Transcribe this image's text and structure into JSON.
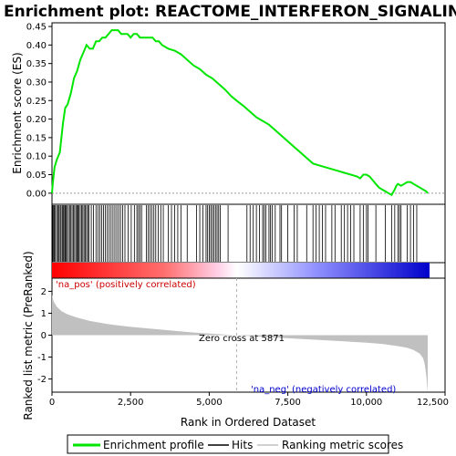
{
  "chart_data": {
    "type": "line",
    "title": "Enrichment plot: REACTOME_INTERFERON_SIGNALING",
    "xlabel": "Rank in Ordered Dataset",
    "ylabel_top": "Enrichment score (ES)",
    "ylabel_bottom": "Ranked list metric (PreRanked)",
    "xlim": [
      0,
      12500
    ],
    "ylim_es": [
      -0.03,
      0.46
    ],
    "ylim_metric": [
      -2.6,
      2.6
    ],
    "x_ticks": [
      "0",
      "2,500",
      "5,000",
      "7,500",
      "10,000",
      "12,500"
    ],
    "x_tick_values": [
      0,
      2500,
      5000,
      7500,
      10000,
      12500
    ],
    "es_y_ticks": [
      "0.00",
      "0.05",
      "0.10",
      "0.15",
      "0.20",
      "0.25",
      "0.30",
      "0.35",
      "0.40",
      "0.45"
    ],
    "es_y_tick_values": [
      0,
      0.05,
      0.1,
      0.15,
      0.2,
      0.25,
      0.3,
      0.35,
      0.4,
      0.45
    ],
    "metric_y_ticks": [
      "2",
      "1",
      "0",
      "-1",
      "-2"
    ],
    "metric_y_tick_values": [
      2,
      1,
      0,
      -1,
      -2
    ],
    "es_curve": {
      "x": [
        0,
        30,
        80,
        150,
        250,
        350,
        420,
        500,
        600,
        700,
        800,
        900,
        1000,
        1100,
        1200,
        1300,
        1400,
        1500,
        1600,
        1700,
        1800,
        1900,
        2000,
        2100,
        2200,
        2300,
        2400,
        2500,
        2600,
        2700,
        2800,
        2900,
        3000,
        3100,
        3200,
        3300,
        3400,
        3500,
        3700,
        3900,
        4100,
        4300,
        4500,
        4700,
        4900,
        5100,
        5300,
        5500,
        5700,
        5871,
        6100,
        6300,
        6500,
        6700,
        6900,
        7100,
        7300,
        7500,
        7700,
        7900,
        8100,
        8300,
        8500,
        8700,
        8900,
        9100,
        9300,
        9500,
        9700,
        9800,
        9900,
        10000,
        10100,
        10200,
        10300,
        10400,
        10500,
        10600,
        10700,
        10800,
        10900,
        10950,
        11000,
        11100,
        11200,
        11300,
        11400,
        11500,
        11600,
        11700,
        11800,
        11900,
        11950
      ],
      "y": [
        0.0,
        0.03,
        0.07,
        0.09,
        0.11,
        0.19,
        0.23,
        0.24,
        0.27,
        0.31,
        0.33,
        0.36,
        0.38,
        0.4,
        0.39,
        0.39,
        0.41,
        0.41,
        0.42,
        0.42,
        0.43,
        0.44,
        0.44,
        0.44,
        0.43,
        0.43,
        0.43,
        0.42,
        0.43,
        0.43,
        0.42,
        0.42,
        0.42,
        0.42,
        0.42,
        0.41,
        0.41,
        0.4,
        0.39,
        0.385,
        0.375,
        0.36,
        0.345,
        0.335,
        0.32,
        0.31,
        0.295,
        0.28,
        0.262,
        0.25,
        0.235,
        0.22,
        0.205,
        0.195,
        0.185,
        0.17,
        0.155,
        0.14,
        0.125,
        0.11,
        0.095,
        0.08,
        0.075,
        0.07,
        0.065,
        0.06,
        0.055,
        0.05,
        0.045,
        0.04,
        0.05,
        0.05,
        0.045,
        0.035,
        0.025,
        0.015,
        0.01,
        0.005,
        0.0,
        -0.005,
        0.01,
        0.02,
        0.025,
        0.02,
        0.025,
        0.03,
        0.03,
        0.025,
        0.02,
        0.015,
        0.01,
        0.005,
        0.0
      ]
    },
    "hit_positions": [
      20,
      40,
      70,
      100,
      150,
      180,
      220,
      260,
      290,
      330,
      360,
      400,
      420,
      440,
      470,
      520,
      560,
      600,
      640,
      680,
      720,
      760,
      800,
      830,
      860,
      900,
      940,
      980,
      1020,
      1060,
      1100,
      1140,
      1180,
      1250,
      1320,
      1400,
      1460,
      1520,
      1580,
      1640,
      1700,
      1760,
      1820,
      1880,
      1940,
      2000,
      2060,
      2120,
      2180,
      2250,
      2320,
      2420,
      2520,
      2620,
      2700,
      2750,
      2800,
      2850,
      3000,
      3060,
      3120,
      3180,
      3240,
      3300,
      3380,
      3460,
      3540,
      3700,
      3800,
      3900,
      4000,
      4100,
      4300,
      4600,
      4700,
      4800,
      4900,
      4950,
      5000,
      5050,
      5100,
      5150,
      5200,
      5250,
      5300,
      5350,
      5600,
      6200,
      6300,
      6400,
      6500,
      6600,
      6700,
      6750,
      6800,
      6900,
      6950,
      7000,
      7100,
      7250,
      7300,
      7500,
      7700,
      7800,
      8100,
      8300,
      8400,
      8500,
      8600,
      8700,
      8900,
      9000,
      9200,
      9300,
      9400,
      9500,
      9600,
      9800,
      9900,
      10000,
      10050,
      10300,
      10600,
      10800,
      10900,
      11000,
      11050,
      11100,
      11300,
      11400,
      11500,
      11600
    ],
    "metric_curve": {
      "x": [
        0,
        50,
        150,
        300,
        500,
        800,
        1200,
        1800,
        2500,
        3500,
        4500,
        5500,
        5871,
        6500,
        7500,
        8500,
        9500,
        10000,
        10500,
        11000,
        11300,
        11500,
        11700,
        11800,
        11850,
        11900,
        11950
      ],
      "y": [
        1.85,
        1.55,
        1.3,
        1.1,
        0.95,
        0.8,
        0.65,
        0.5,
        0.38,
        0.25,
        0.12,
        0.03,
        0.0,
        -0.06,
        -0.14,
        -0.22,
        -0.3,
        -0.34,
        -0.4,
        -0.5,
        -0.58,
        -0.68,
        -0.85,
        -1.05,
        -1.3,
        -1.8,
        -2.6
      ]
    },
    "zero_cross_rank": 5871,
    "zero_cross_label": "Zero cross at 5871",
    "pos_label": "'na_pos' (positively correlated)",
    "neg_label": "'na_neg' (negatively correlated)",
    "legend": [
      "Enrichment profile",
      "Hits",
      "Ranking metric scores"
    ],
    "colors": {
      "es_line": "#00e600",
      "hits": "#000000",
      "metric_fill": "#c0c0c0",
      "pos_text": "#cc0000",
      "neg_text": "#0000cc",
      "zero_line": "#b0b0b0"
    }
  }
}
